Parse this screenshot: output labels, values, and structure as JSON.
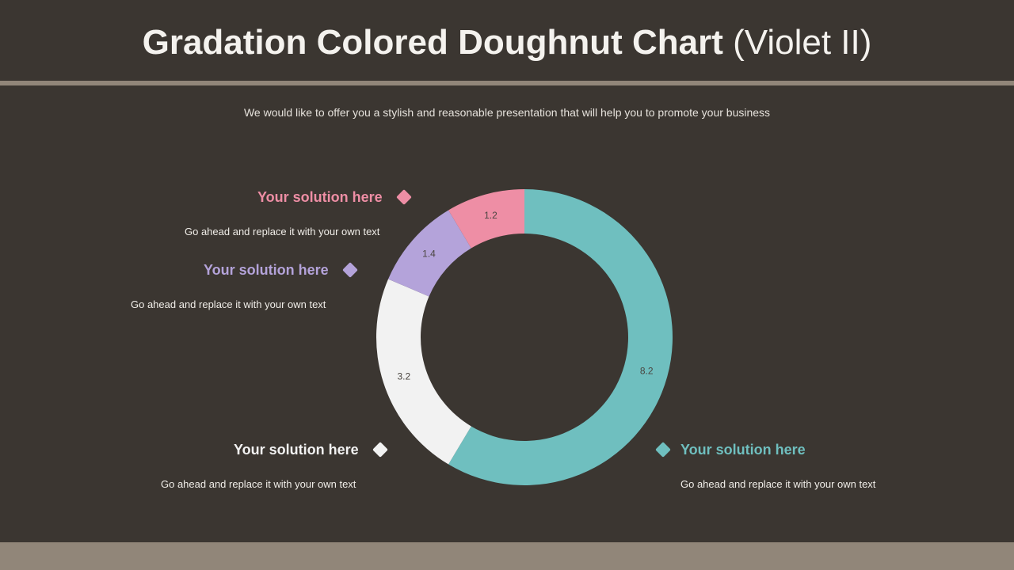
{
  "slide": {
    "title_bold": "Gradation Colored Doughnut Chart",
    "title_light": "(Violet II)",
    "subtitle": "We would like to offer you a stylish and reasonable presentation that will help you to promote your business"
  },
  "colors": {
    "background": "#3b3631",
    "accent_bar": "#918679",
    "teal": "#6fbfbf",
    "white": "#f2f2f2",
    "violet": "#b4a3da",
    "pink": "#ee8ea5"
  },
  "labels": [
    {
      "heading": "Your solution here",
      "text": "Go ahead and replace it with your own text",
      "color": "#ee8ea5"
    },
    {
      "heading": "Your solution here",
      "text": "Go ahead and replace it with your own text",
      "color": "#b4a3da"
    },
    {
      "heading": "Your solution here",
      "text": "Go ahead and replace it with your own text",
      "color": "#f2f2f2"
    },
    {
      "heading": "Your solution here",
      "text": "Go ahead and replace it with your own text",
      "color": "#6fbfbf"
    }
  ],
  "chart_data": {
    "type": "pie",
    "variant": "doughnut",
    "start": "12 o'clock, clockwise",
    "slices": [
      {
        "value": 8.2,
        "label": "8.2",
        "color": "#6fbfbf"
      },
      {
        "value": 3.2,
        "label": "3.2",
        "color": "#f2f2f2"
      },
      {
        "value": 1.4,
        "label": "1.4",
        "color": "#b4a3da"
      },
      {
        "value": 1.2,
        "label": "1.2",
        "color": "#ee8ea5"
      }
    ]
  }
}
